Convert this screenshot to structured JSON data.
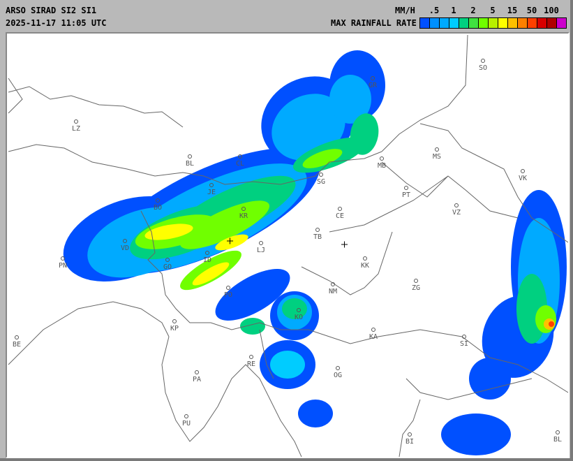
{
  "header": {
    "title": "ARSO SIRAD SI2 SI1",
    "timestamp": "2025-11-17 11:05 UTC",
    "unit": "MM/H",
    "legend_label": "MAX RAINFALL RATE"
  },
  "legend": {
    "ticks": [
      ".5",
      "1",
      "2",
      "5",
      "15",
      "50",
      "100"
    ],
    "colors": [
      "#0050ff",
      "#0090ff",
      "#00aaff",
      "#00ccff",
      "#00d080",
      "#40e040",
      "#70ff00",
      "#b8f000",
      "#ffff00",
      "#ffc000",
      "#ff8000",
      "#ff4000",
      "#d80000",
      "#b00000",
      "#cc00cc"
    ]
  },
  "map": {
    "cities": [
      "LZ",
      "SO",
      "GR",
      "MS",
      "VK",
      "MB",
      "BL",
      "CL",
      "SG",
      "JE",
      "BO",
      "KR",
      "CE",
      "TB",
      "VD",
      "LJ",
      "ID",
      "PN",
      "GO",
      "PT",
      "VZ",
      "KK",
      "PO",
      "NM",
      "ZG",
      "KO",
      "KP",
      "KA",
      "SI",
      "BE",
      "RE",
      "OG",
      "PA",
      "PU",
      "BI",
      "BL"
    ]
  }
}
